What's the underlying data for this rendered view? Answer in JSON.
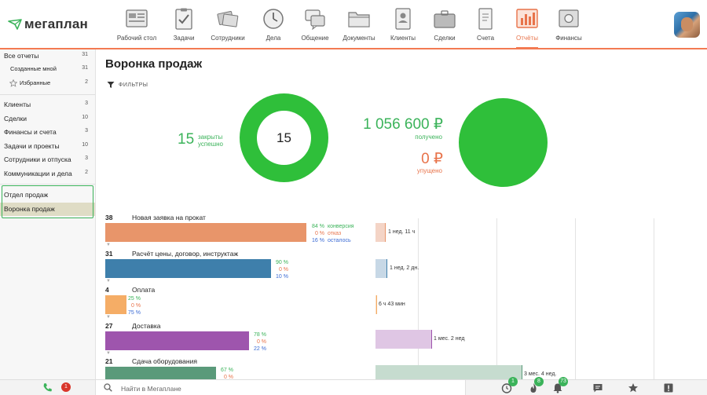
{
  "logo": {
    "text": "мегаплан"
  },
  "nav": [
    {
      "label": "Рабочий стол",
      "icon": "desktop-icon"
    },
    {
      "label": "Задачи",
      "icon": "tasks-icon"
    },
    {
      "label": "Сотрудники",
      "icon": "employees-icon"
    },
    {
      "label": "Дела",
      "icon": "clock-icon"
    },
    {
      "label": "Общение",
      "icon": "chat-icon"
    },
    {
      "label": "Документы",
      "icon": "folder-icon"
    },
    {
      "label": "Клиенты",
      "icon": "contacts-icon"
    },
    {
      "label": "Сделки",
      "icon": "briefcase-icon"
    },
    {
      "label": "Счета",
      "icon": "invoice-icon"
    },
    {
      "label": "Отчёты",
      "icon": "report-icon",
      "active": true
    },
    {
      "label": "Финансы",
      "icon": "safe-icon"
    }
  ],
  "sidebar": {
    "items": [
      {
        "label": "Все отчеты",
        "count": "31"
      },
      {
        "label": "Созданные мной",
        "count": "31"
      },
      {
        "label": "Избранные",
        "count": "2"
      },
      {
        "label": "Клиенты",
        "count": "3"
      },
      {
        "label": "Сделки",
        "count": "10"
      },
      {
        "label": "Финансы и счета",
        "count": "3"
      },
      {
        "label": "Задачи и проекты",
        "count": "10"
      },
      {
        "label": "Сотрудники и отпуска",
        "count": "3"
      },
      {
        "label": "Коммуникации и дела",
        "count": "2"
      },
      {
        "label": "Отдел продаж",
        "count": ""
      },
      {
        "label": "Воронка продаж",
        "count": ""
      }
    ]
  },
  "page": {
    "title": "Воронка продаж",
    "filters_label": "ФИЛЬТРЫ"
  },
  "summary": {
    "closed_count": "15",
    "closed_label_1": "закрыты",
    "closed_label_2": "успешно",
    "donut_value": "15",
    "received_amount": "1 056 600 ₽",
    "received_label": "получено",
    "lost_amount": "0 ₽",
    "lost_label": "упущено"
  },
  "funnel": {
    "stages": [
      {
        "count": "38",
        "name": "Новая заявка на прокат",
        "color": "#e8956a",
        "conv": "84 %",
        "refuse": "0 %",
        "remain": "16 %",
        "conv_label": "конверсия",
        "refuse_label": "отказ",
        "remain_label": "осталось",
        "time": "1 нед. 11 ч",
        "time_color": "#f4d4c6"
      },
      {
        "count": "31",
        "name": "Расчёт цены, договор, инструктаж",
        "color": "#3e7fab",
        "conv": "90 %",
        "refuse": "0 %",
        "remain": "10 %",
        "time": "1 нед. 2 дн.",
        "time_color": "#c7d8e6"
      },
      {
        "count": "4",
        "name": "Оплата",
        "color": "#f5ad66",
        "conv": "25 %",
        "refuse": "0 %",
        "remain": "75 %",
        "time": "6 ч 43 мин",
        "time_color": "#f8dcc0"
      },
      {
        "count": "27",
        "name": "Доставка",
        "color": "#9e55ad",
        "conv": "78 %",
        "refuse": "0 %",
        "remain": "22 %",
        "time": "1 мес. 2 нед",
        "time_color": "#dfc6e4"
      },
      {
        "count": "21",
        "name": "Сдача оборудования",
        "color": "#5a9a7a",
        "conv": "67 %",
        "refuse": "0 %",
        "remain": "",
        "time": "3 мес. 4 нед.",
        "time_color": "#c6dccf"
      }
    ]
  },
  "bottom": {
    "missed_calls": "1",
    "search_placeholder": "Найти в Мегаплане",
    "badge_1": "1",
    "badge_2": "8",
    "badge_3": "73"
  },
  "colors": {
    "accent": "#f37a52",
    "green": "#3bb35a",
    "red": "#e8734a"
  }
}
